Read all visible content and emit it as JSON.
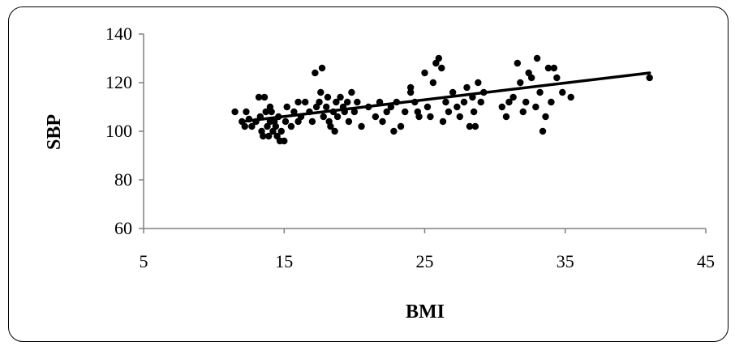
{
  "chart_data": {
    "type": "scatter",
    "title": "",
    "xlabel": "BMI",
    "ylabel": "SBP",
    "xlim": [
      5,
      45
    ],
    "ylim": [
      60,
      140
    ],
    "xticks": [
      5,
      15,
      25,
      35,
      45
    ],
    "yticks": [
      60,
      80,
      100,
      120,
      140
    ],
    "grid": false,
    "legend": "none",
    "colors": {
      "points": "#000000",
      "trendline": "#000000",
      "axes": "#808080"
    },
    "points": [
      {
        "x": 11.5,
        "y": 108
      },
      {
        "x": 12.0,
        "y": 104
      },
      {
        "x": 12.2,
        "y": 102
      },
      {
        "x": 12.3,
        "y": 108
      },
      {
        "x": 12.5,
        "y": 105
      },
      {
        "x": 12.7,
        "y": 102
      },
      {
        "x": 13.0,
        "y": 104
      },
      {
        "x": 13.2,
        "y": 114
      },
      {
        "x": 13.3,
        "y": 106
      },
      {
        "x": 13.4,
        "y": 100
      },
      {
        "x": 13.5,
        "y": 98
      },
      {
        "x": 13.6,
        "y": 114
      },
      {
        "x": 13.7,
        "y": 108
      },
      {
        "x": 13.8,
        "y": 102
      },
      {
        "x": 13.9,
        "y": 98
      },
      {
        "x": 14.0,
        "y": 104
      },
      {
        "x": 14.0,
        "y": 110
      },
      {
        "x": 14.1,
        "y": 108
      },
      {
        "x": 14.2,
        "y": 100
      },
      {
        "x": 14.3,
        "y": 104
      },
      {
        "x": 14.4,
        "y": 102
      },
      {
        "x": 14.5,
        "y": 98
      },
      {
        "x": 14.6,
        "y": 106
      },
      {
        "x": 14.7,
        "y": 96
      },
      {
        "x": 14.8,
        "y": 100
      },
      {
        "x": 15.0,
        "y": 96
      },
      {
        "x": 15.1,
        "y": 104
      },
      {
        "x": 15.2,
        "y": 110
      },
      {
        "x": 15.5,
        "y": 102
      },
      {
        "x": 15.7,
        "y": 108
      },
      {
        "x": 16.0,
        "y": 112
      },
      {
        "x": 16.0,
        "y": 104
      },
      {
        "x": 16.2,
        "y": 106
      },
      {
        "x": 16.5,
        "y": 112
      },
      {
        "x": 16.8,
        "y": 108
      },
      {
        "x": 17.0,
        "y": 104
      },
      {
        "x": 17.2,
        "y": 124
      },
      {
        "x": 17.3,
        "y": 110
      },
      {
        "x": 17.5,
        "y": 112
      },
      {
        "x": 17.6,
        "y": 116
      },
      {
        "x": 17.7,
        "y": 126
      },
      {
        "x": 17.8,
        "y": 106
      },
      {
        "x": 18.0,
        "y": 110
      },
      {
        "x": 18.1,
        "y": 114
      },
      {
        "x": 18.2,
        "y": 104
      },
      {
        "x": 18.3,
        "y": 102
      },
      {
        "x": 18.5,
        "y": 108
      },
      {
        "x": 18.6,
        "y": 100
      },
      {
        "x": 18.7,
        "y": 112
      },
      {
        "x": 18.8,
        "y": 106
      },
      {
        "x": 19.0,
        "y": 114
      },
      {
        "x": 19.2,
        "y": 110
      },
      {
        "x": 19.3,
        "y": 108
      },
      {
        "x": 19.5,
        "y": 112
      },
      {
        "x": 19.6,
        "y": 104
      },
      {
        "x": 19.8,
        "y": 116
      },
      {
        "x": 20.0,
        "y": 108
      },
      {
        "x": 20.2,
        "y": 112
      },
      {
        "x": 20.5,
        "y": 102
      },
      {
        "x": 21.0,
        "y": 110
      },
      {
        "x": 21.5,
        "y": 106
      },
      {
        "x": 21.8,
        "y": 112
      },
      {
        "x": 22.0,
        "y": 104
      },
      {
        "x": 22.3,
        "y": 108
      },
      {
        "x": 22.6,
        "y": 110
      },
      {
        "x": 22.8,
        "y": 100
      },
      {
        "x": 23.0,
        "y": 112
      },
      {
        "x": 23.3,
        "y": 102
      },
      {
        "x": 23.6,
        "y": 108
      },
      {
        "x": 24.0,
        "y": 118
      },
      {
        "x": 24.0,
        "y": 116
      },
      {
        "x": 24.3,
        "y": 112
      },
      {
        "x": 24.5,
        "y": 108
      },
      {
        "x": 24.6,
        "y": 106
      },
      {
        "x": 25.0,
        "y": 124
      },
      {
        "x": 25.2,
        "y": 110
      },
      {
        "x": 25.4,
        "y": 106
      },
      {
        "x": 25.6,
        "y": 120
      },
      {
        "x": 25.8,
        "y": 128
      },
      {
        "x": 26.0,
        "y": 130
      },
      {
        "x": 26.2,
        "y": 126
      },
      {
        "x": 26.3,
        "y": 104
      },
      {
        "x": 26.5,
        "y": 112
      },
      {
        "x": 26.7,
        "y": 108
      },
      {
        "x": 27.0,
        "y": 116
      },
      {
        "x": 27.3,
        "y": 110
      },
      {
        "x": 27.5,
        "y": 106
      },
      {
        "x": 27.8,
        "y": 112
      },
      {
        "x": 28.0,
        "y": 118
      },
      {
        "x": 28.2,
        "y": 102
      },
      {
        "x": 28.4,
        "y": 114
      },
      {
        "x": 28.5,
        "y": 108
      },
      {
        "x": 28.6,
        "y": 102
      },
      {
        "x": 28.8,
        "y": 120
      },
      {
        "x": 29.0,
        "y": 112
      },
      {
        "x": 29.2,
        "y": 116
      },
      {
        "x": 30.5,
        "y": 110
      },
      {
        "x": 30.8,
        "y": 106
      },
      {
        "x": 31.0,
        "y": 112
      },
      {
        "x": 31.3,
        "y": 114
      },
      {
        "x": 31.6,
        "y": 128
      },
      {
        "x": 31.8,
        "y": 120
      },
      {
        "x": 32.0,
        "y": 108
      },
      {
        "x": 32.2,
        "y": 112
      },
      {
        "x": 32.4,
        "y": 124
      },
      {
        "x": 32.6,
        "y": 122
      },
      {
        "x": 32.9,
        "y": 110
      },
      {
        "x": 33.0,
        "y": 130
      },
      {
        "x": 33.2,
        "y": 116
      },
      {
        "x": 33.4,
        "y": 100
      },
      {
        "x": 33.6,
        "y": 106
      },
      {
        "x": 33.8,
        "y": 126
      },
      {
        "x": 34.0,
        "y": 112
      },
      {
        "x": 34.2,
        "y": 126
      },
      {
        "x": 34.4,
        "y": 122
      },
      {
        "x": 34.8,
        "y": 116
      },
      {
        "x": 35.4,
        "y": 114
      },
      {
        "x": 41.0,
        "y": 122
      }
    ],
    "trendline": {
      "x": [
        12,
        41
      ],
      "y": [
        104,
        124
      ]
    }
  }
}
